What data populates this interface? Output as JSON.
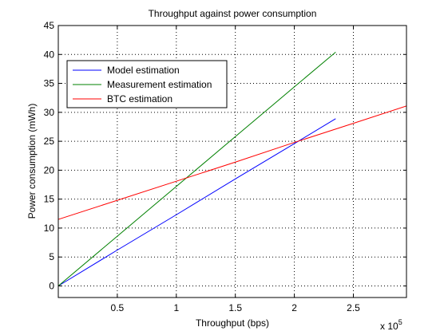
{
  "chart_data": {
    "type": "line",
    "title": "Throughput against power consumption",
    "xlabel": "Throughput (bps)",
    "ylabel": "Power consumption (mWh)",
    "x_multiplier_label": "x 10",
    "x_multiplier_exponent": "5",
    "xlim": [
      0,
      295000
    ],
    "ylim": [
      -2,
      45
    ],
    "xticks": [
      50000,
      100000,
      150000,
      200000,
      250000
    ],
    "xtick_labels": [
      "0.5",
      "1",
      "1.5",
      "2",
      "2.5"
    ],
    "yticks": [
      0,
      5,
      10,
      15,
      20,
      25,
      30,
      35,
      40,
      45
    ],
    "ytick_labels": [
      "0",
      "5",
      "10",
      "15",
      "20",
      "25",
      "30",
      "35",
      "40",
      "45"
    ],
    "grid": true,
    "legend_position": "top-left",
    "series": [
      {
        "name": "Model estimation",
        "color": "#0000ff",
        "x": [
          0,
          50000,
          100000,
          150000,
          200000,
          235000
        ],
        "y": [
          0,
          6.2,
          12.3,
          18.5,
          24.6,
          28.9
        ]
      },
      {
        "name": "Measurement estimation",
        "color": "#008000",
        "x": [
          0,
          50000,
          100000,
          150000,
          200000,
          235000
        ],
        "y": [
          0,
          8.6,
          17.2,
          25.8,
          34.4,
          40.4
        ]
      },
      {
        "name": "BTC estimation",
        "color": "#ff0000",
        "x": [
          0,
          50000,
          100000,
          150000,
          200000,
          250000,
          295000
        ],
        "y": [
          11.5,
          14.8,
          18.1,
          21.4,
          24.8,
          28.1,
          31.1
        ]
      }
    ]
  }
}
